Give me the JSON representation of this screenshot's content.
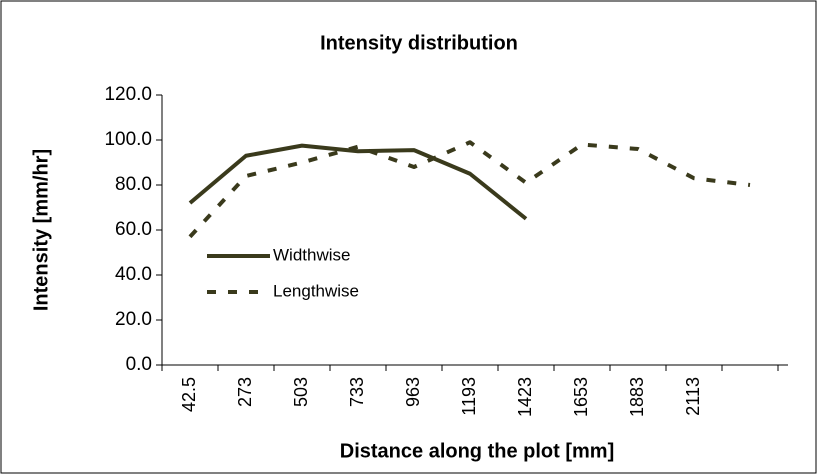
{
  "chart_data": {
    "type": "line",
    "title": "Intensity distribution",
    "xlabel": "Distance along the plot [mm]",
    "ylabel": "Intensity [mm/hr]",
    "categories": [
      "42.5",
      "273",
      "503",
      "733",
      "963",
      "1193",
      "1423",
      "1653",
      "1883",
      "2113",
      null
    ],
    "series": [
      {
        "name": "Widthwise",
        "color": "#3a3a1c",
        "dash": "solid",
        "values": [
          72,
          93,
          97.5,
          95,
          95.5,
          85,
          65,
          null,
          null,
          null,
          null
        ]
      },
      {
        "name": "Lengthwise",
        "color": "#3a3a1c",
        "dash": "dashed",
        "values": [
          57,
          84,
          90,
          97,
          88,
          99,
          81,
          98,
          96,
          83,
          80
        ]
      }
    ],
    "ylim": [
      0,
      120
    ],
    "yticks": [
      {
        "value": 0,
        "label": "0.0"
      },
      {
        "value": 20,
        "label": "20.0"
      },
      {
        "value": 40,
        "label": "40.0"
      },
      {
        "value": 60,
        "label": "60.0"
      },
      {
        "value": 80,
        "label": "80.0"
      },
      {
        "value": 100,
        "label": "100.0"
      },
      {
        "value": 120,
        "label": "120.0"
      }
    ],
    "grid": false,
    "legend": "left"
  }
}
